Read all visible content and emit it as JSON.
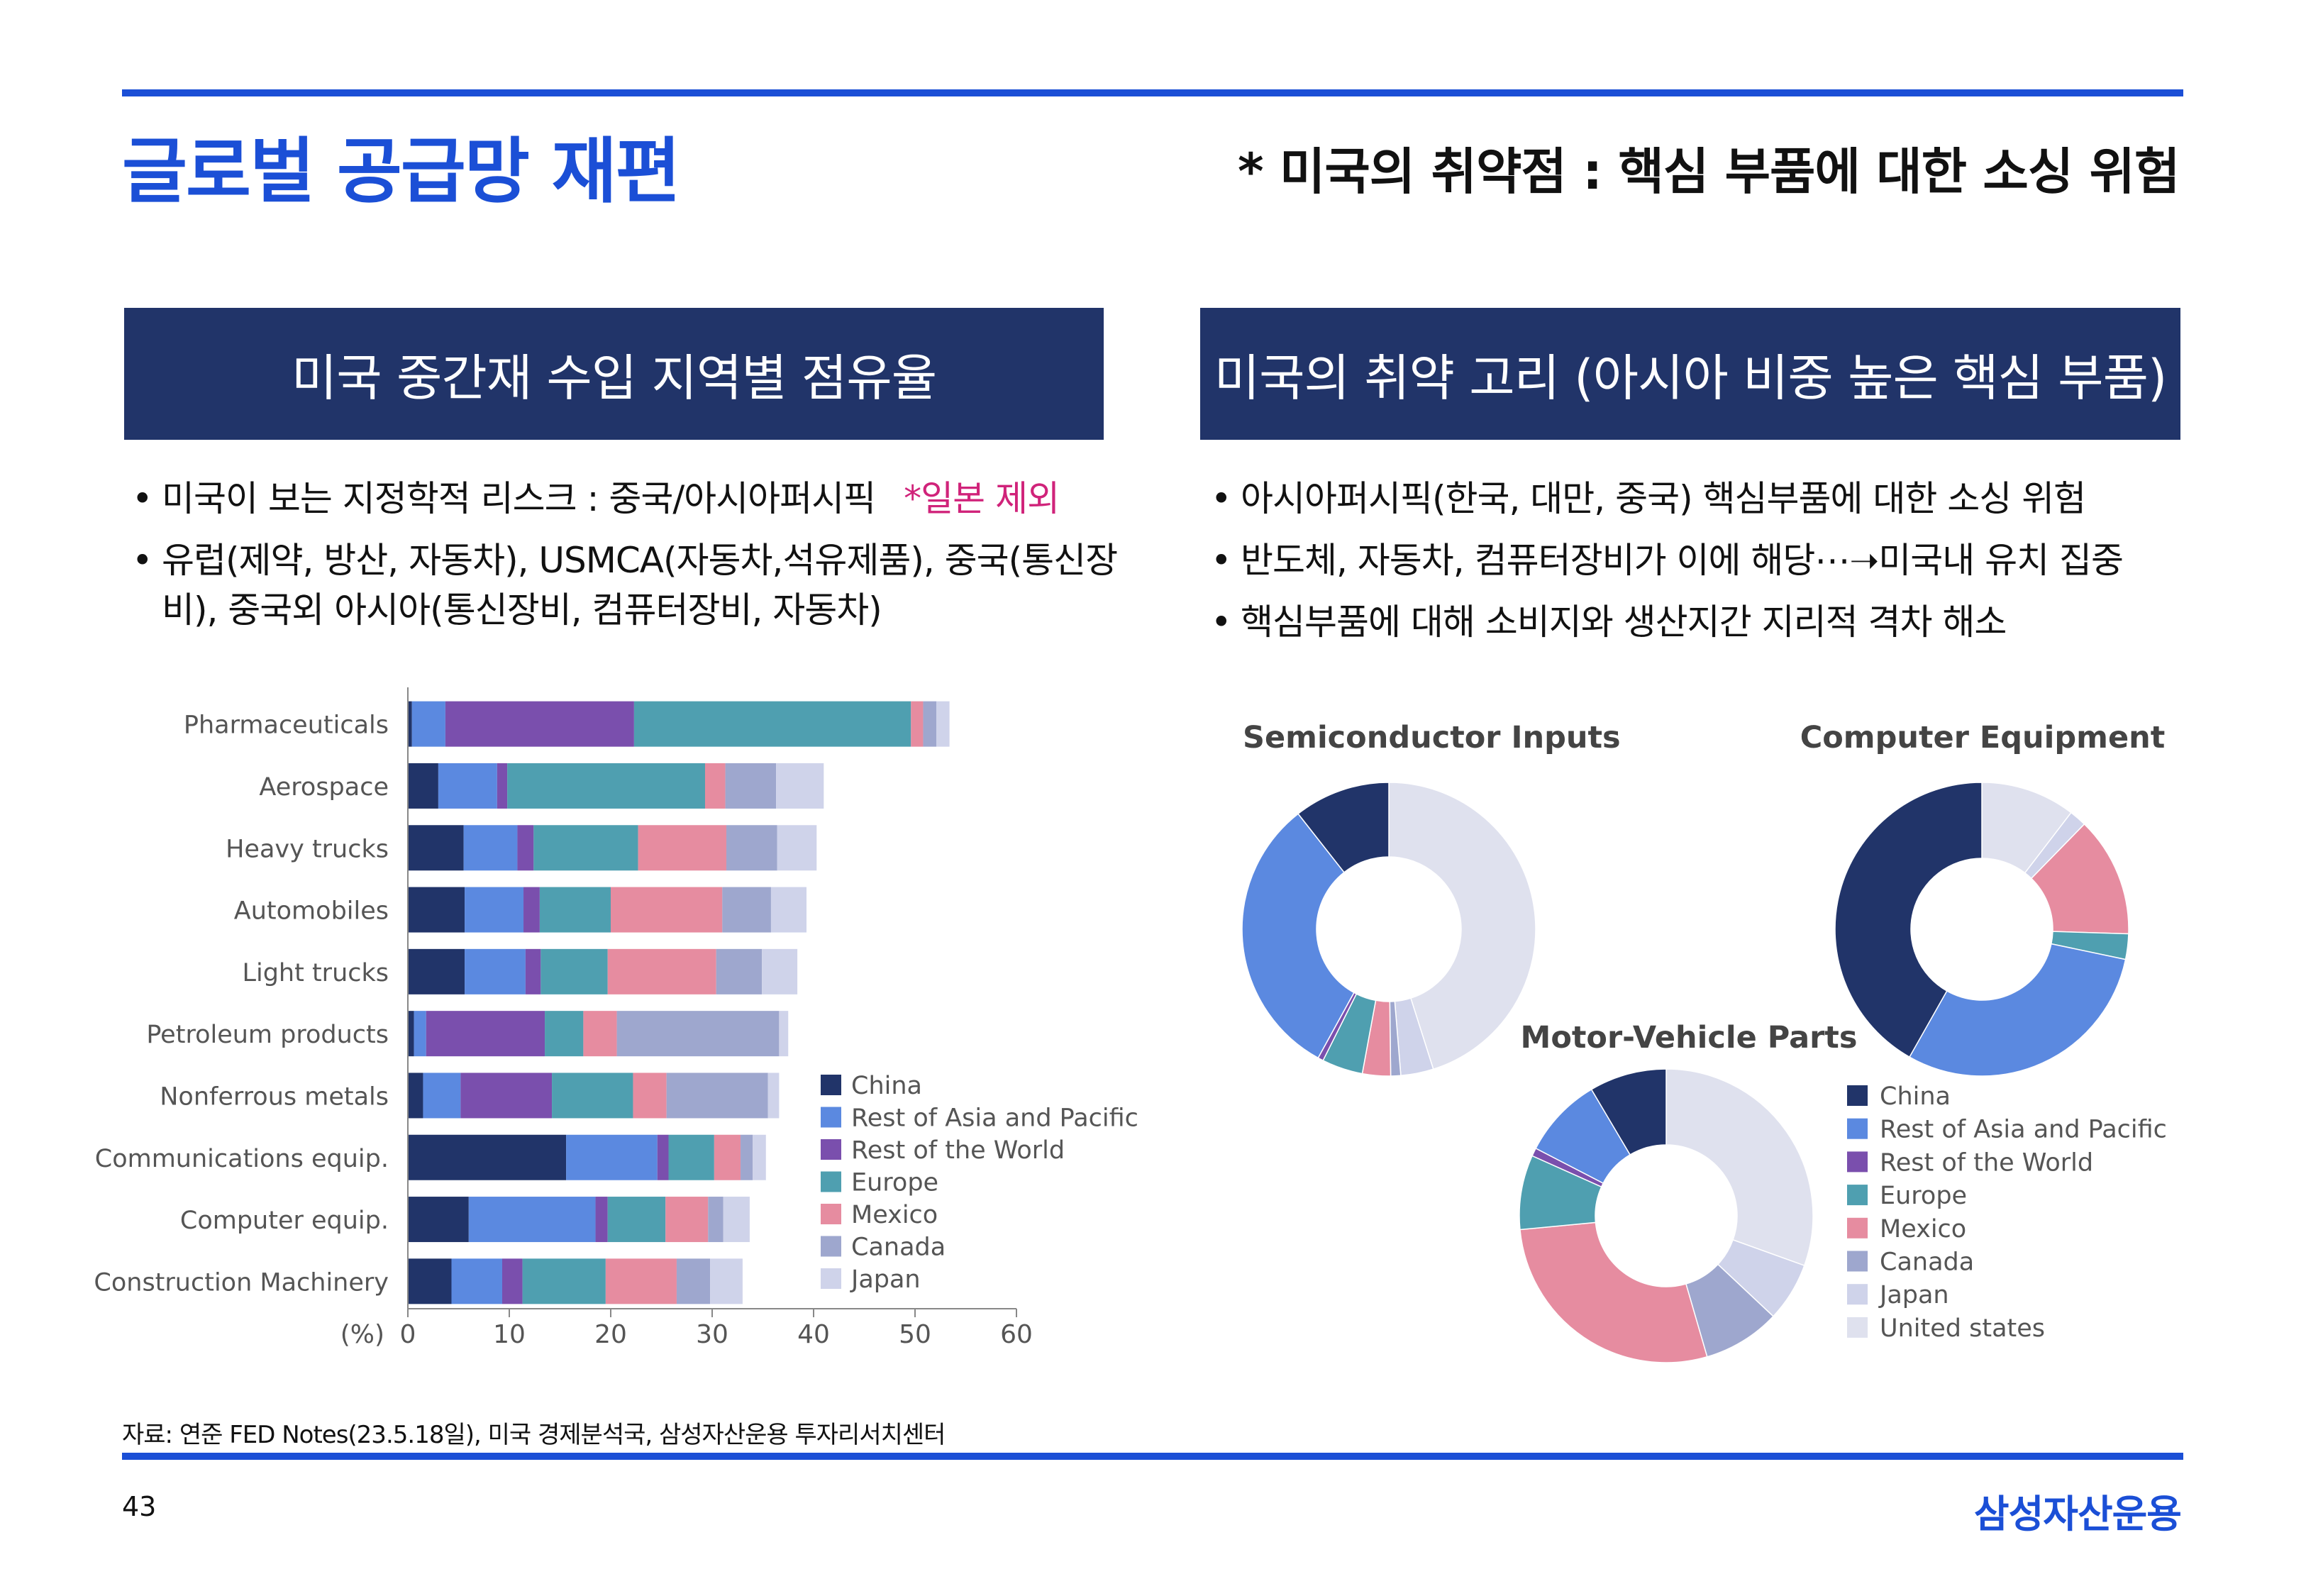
{
  "header": {
    "title": "글로벌 공급망 재편",
    "subtitle": "* 미국의 취약점 : 핵심 부품에 대한 소싱 위험"
  },
  "left": {
    "banner": "미국 중간재 수입 지역별 점유율",
    "bullets": [
      "미국이 보는 지정학적 리스크 : 중국/아시아퍼시픽",
      "유럽(제약, 방산, 자동차), USMCA(자동차,석유제품), 중국(통신장비), 중국외 아시아(통신장비, 컴퓨터장비, 자동차)"
    ],
    "note": "*일본 제외"
  },
  "right": {
    "banner": "미국의 취약 고리 (아시아 비중 높은 핵심 부품)",
    "bullets": [
      "아시아퍼시픽(한국, 대만, 중국) 핵심부품에 대한 소싱 위험",
      "반도체, 자동차, 컴퓨터장비가 이에 해당⋯➝미국내 유치 집중",
      "핵심부품에 대해 소비지와 생산지간 지리적 격차 해소"
    ]
  },
  "colors": {
    "China": "#213469",
    "Rest of Asia and Pacific": "#5b89e0",
    "Rest of the World": "#7a4fad",
    "Europe": "#4f9fb0",
    "Mexico": "#e68ca0",
    "Canada": "#9ea7ce",
    "Japan": "#cfd3ea",
    "United states": "#dfe1ee"
  },
  "chart_data": [
    {
      "type": "bar",
      "orientation": "horizontal",
      "stacked": true,
      "title": "",
      "xlabel": "(%)",
      "xlim": [
        0,
        60
      ],
      "xticks": [
        0,
        10,
        20,
        30,
        40,
        50,
        60
      ],
      "legend_position": "right",
      "categories": [
        "Pharmaceuticals",
        "Aerospace",
        "Heavy trucks",
        "Automobiles",
        "Light trucks",
        "Petroleum products",
        "Nonferrous metals",
        "Communications equip.",
        "Computer equip.",
        "Construction Machinery"
      ],
      "series": [
        {
          "name": "China",
          "values": [
            0.4,
            3.0,
            5.5,
            5.6,
            5.6,
            0.6,
            1.5,
            15.6,
            6.0,
            4.3
          ]
        },
        {
          "name": "Rest of Asia and Pacific",
          "values": [
            3.3,
            5.8,
            5.3,
            5.8,
            6.0,
            1.2,
            3.7,
            9.0,
            12.5,
            5.0
          ]
        },
        {
          "name": "Rest of the World",
          "values": [
            18.6,
            1.0,
            1.6,
            1.6,
            1.5,
            11.7,
            9.0,
            1.1,
            1.2,
            2.0
          ]
        },
        {
          "name": "Europe",
          "values": [
            27.3,
            19.5,
            10.3,
            7.0,
            6.6,
            3.8,
            8.0,
            4.5,
            5.7,
            8.2
          ]
        },
        {
          "name": "Mexico",
          "values": [
            1.2,
            2.0,
            8.7,
            11.0,
            10.7,
            3.3,
            3.3,
            2.6,
            4.2,
            7.0
          ]
        },
        {
          "name": "Canada",
          "values": [
            1.3,
            5.0,
            5.0,
            4.8,
            4.5,
            16.0,
            10.0,
            1.2,
            1.5,
            3.3
          ]
        },
        {
          "name": "Japan",
          "values": [
            1.3,
            4.7,
            3.9,
            3.5,
            3.5,
            0.9,
            1.1,
            1.3,
            2.6,
            3.2
          ]
        }
      ]
    },
    {
      "type": "pie",
      "donut": true,
      "title": "Semiconductor Inputs",
      "labels": [
        "United states",
        "Japan",
        "Canada",
        "Mexico",
        "Europe",
        "Rest of the World",
        "Rest of Asia and Pacific",
        "China"
      ],
      "values": [
        45.1,
        3.6,
        1.1,
        3.1,
        4.5,
        0.6,
        31.4,
        10.6
      ]
    },
    {
      "type": "pie",
      "donut": true,
      "title": "Computer Equipment",
      "labels": [
        "United states",
        "Japan",
        "Mexico",
        "Europe",
        "Rest of Asia and Pacific",
        "China"
      ],
      "values": [
        10.4,
        1.9,
        13.2,
        2.8,
        29.9,
        41.8
      ]
    },
    {
      "type": "pie",
      "donut": true,
      "title": "Motor-Vehicle Parts",
      "labels": [
        "United states",
        "Japan",
        "Canada",
        "Mexico",
        "Europe",
        "Rest of the World",
        "Rest of Asia and Pacific",
        "China"
      ],
      "values": [
        30.5,
        6.5,
        8.5,
        28.0,
        8.2,
        0.9,
        8.9,
        8.5
      ]
    }
  ],
  "donut_legend": [
    "China",
    "Rest of Asia and Pacific",
    "Rest of the World",
    "Europe",
    "Mexico",
    "Canada",
    "Japan",
    "United states"
  ],
  "footer": {
    "source": "자료: 연준 FED Notes(23.5.18일), 미국 경제분석국, 삼성자산운용 투자리서치센터",
    "page": "43",
    "brand": "삼성자산운용"
  }
}
